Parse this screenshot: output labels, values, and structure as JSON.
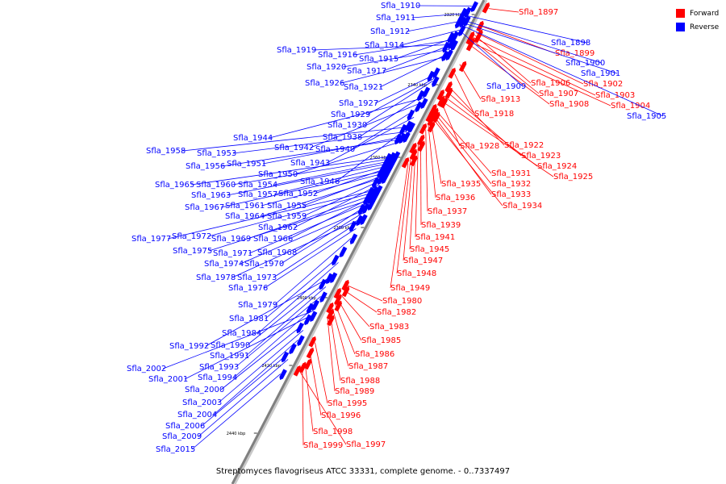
{
  "legend": {
    "forward": {
      "label": "Forward",
      "color": "#ff0000"
    },
    "reverse": {
      "label": "Reverse",
      "color": "#0000ff"
    }
  },
  "caption": "Streptomyces flavogriseus ATCC 33331, complete genome. - 0..7337497",
  "axis": {
    "unit": "kbp",
    "ticks": [
      "2320 kbp",
      "2340 kbp",
      "2360 kbp",
      "2380 kbp",
      "2400 kbp",
      "2420 kbp",
      "2440 kbp"
    ]
  },
  "colors": {
    "axis": "#808080",
    "forward": "#ff0000",
    "reverse": "#0000ff",
    "leader_forward": "#ff0000",
    "leader_reverse": "#0000ff"
  },
  "forward_genes": [
    {
      "label": "Sfla_1897",
      "a": 0.01
    },
    {
      "label": "Sfla_1899",
      "a": 0.045
    },
    {
      "label": "Sfla_1902",
      "a": 0.06
    },
    {
      "label": "Sfla_1903",
      "a": 0.07
    },
    {
      "label": "Sfla_1904",
      "a": 0.08
    },
    {
      "label": "Sfla_1906",
      "a": 0.065
    },
    {
      "label": "Sfla_1907",
      "a": 0.075
    },
    {
      "label": "Sfla_1908",
      "a": 0.085
    },
    {
      "label": "Sfla_1913",
      "a": 0.125
    },
    {
      "label": "Sfla_1918",
      "a": 0.145
    },
    {
      "label": "Sfla_1922",
      "a": 0.17
    },
    {
      "label": "Sfla_1923",
      "a": 0.18
    },
    {
      "label": "Sfla_1924",
      "a": 0.19
    },
    {
      "label": "Sfla_1925",
      "a": 0.2
    },
    {
      "label": "Sfla_1928",
      "a": 0.2
    },
    {
      "label": "Sfla_1931",
      "a": 0.22
    },
    {
      "label": "Sfla_1932",
      "a": 0.225
    },
    {
      "label": "Sfla_1933",
      "a": 0.23
    },
    {
      "label": "Sfla_1934",
      "a": 0.235
    },
    {
      "label": "Sfla_1935",
      "a": 0.24
    },
    {
      "label": "Sfla_1936",
      "a": 0.25
    },
    {
      "label": "Sfla_1937",
      "a": 0.26
    },
    {
      "label": "Sfla_1939",
      "a": 0.28
    },
    {
      "label": "Sfla_1941",
      "a": 0.29
    },
    {
      "label": "Sfla_1945",
      "a": 0.3
    },
    {
      "label": "Sfla_1947",
      "a": 0.31
    },
    {
      "label": "Sfla_1948",
      "a": 0.32
    },
    {
      "label": "Sfla_1949",
      "a": 0.33
    },
    {
      "label": "Sfla_1980",
      "a": 0.58
    },
    {
      "label": "Sfla_1982",
      "a": 0.59
    },
    {
      "label": "Sfla_1983",
      "a": 0.6
    },
    {
      "label": "Sfla_1985",
      "a": 0.61
    },
    {
      "label": "Sfla_1986",
      "a": 0.62
    },
    {
      "label": "Sfla_1987",
      "a": 0.63
    },
    {
      "label": "Sfla_1988",
      "a": 0.64
    },
    {
      "label": "Sfla_1989",
      "a": 0.65
    },
    {
      "label": "Sfla_1995",
      "a": 0.7
    },
    {
      "label": "Sfla_1996",
      "a": 0.72
    },
    {
      "label": "Sfla_1998",
      "a": 0.74
    },
    {
      "label": "Sfla_1997",
      "a": 0.76
    },
    {
      "label": "Sfla_1999",
      "a": 0.75
    }
  ],
  "reverse_genes": [
    {
      "label": "Sfla_1910",
      "a": 0.02
    },
    {
      "label": "Sfla_1911",
      "a": 0.035
    },
    {
      "label": "Sfla_1912",
      "a": 0.05
    },
    {
      "label": "Sfla_1914",
      "a": 0.07
    },
    {
      "label": "Sfla_1915",
      "a": 0.085
    },
    {
      "label": "Sfla_1916",
      "a": 0.09
    },
    {
      "label": "Sfla_1919",
      "a": 0.1
    },
    {
      "label": "Sfla_1917",
      "a": 0.1
    },
    {
      "label": "Sfla_1920",
      "a": 0.11
    },
    {
      "label": "Sfla_1921",
      "a": 0.12
    },
    {
      "label": "Sfla_1926",
      "a": 0.125
    },
    {
      "label": "Sfla_1898",
      "a": 0.04
    },
    {
      "label": "Sfla_1900",
      "a": 0.05
    },
    {
      "label": "Sfla_1901",
      "a": 0.055
    },
    {
      "label": "Sfla_1905",
      "a": 0.06
    },
    {
      "label": "Sfla_1909",
      "a": 0.07
    },
    {
      "label": "Sfla_1927",
      "a": 0.16
    },
    {
      "label": "Sfla_1929",
      "a": 0.17
    },
    {
      "label": "Sfla_1930",
      "a": 0.175
    },
    {
      "label": "Sfla_1938",
      "a": 0.2
    },
    {
      "label": "Sfla_1944",
      "a": 0.21
    },
    {
      "label": "Sfla_1942",
      "a": 0.22
    },
    {
      "label": "Sfla_1940",
      "a": 0.23
    },
    {
      "label": "Sfla_1943",
      "a": 0.25
    },
    {
      "label": "Sfla_1946",
      "a": 0.27
    },
    {
      "label": "Sfla_1958",
      "a": 0.27
    },
    {
      "label": "Sfla_1953",
      "a": 0.28
    },
    {
      "label": "Sfla_1951",
      "a": 0.29
    },
    {
      "label": "Sfla_1956",
      "a": 0.295
    },
    {
      "label": "Sfla_1950",
      "a": 0.3
    },
    {
      "label": "Sfla_1965",
      "a": 0.33
    },
    {
      "label": "Sfla_1960",
      "a": 0.335
    },
    {
      "label": "Sfla_1954",
      "a": 0.34
    },
    {
      "label": "Sfla_1963",
      "a": 0.345
    },
    {
      "label": "Sfla_1957",
      "a": 0.35
    },
    {
      "label": "Sfla_1952",
      "a": 0.355
    },
    {
      "label": "Sfla_1967",
      "a": 0.36
    },
    {
      "label": "Sfla_1961",
      "a": 0.365
    },
    {
      "label": "Sfla_1955",
      "a": 0.37
    },
    {
      "label": "Sfla_1964",
      "a": 0.375
    },
    {
      "label": "Sfla_1959",
      "a": 0.38
    },
    {
      "label": "Sfla_1962",
      "a": 0.39
    },
    {
      "label": "Sfla_1977",
      "a": 0.4
    },
    {
      "label": "Sfla_1972",
      "a": 0.405
    },
    {
      "label": "Sfla_1969",
      "a": 0.41
    },
    {
      "label": "Sfla_1966",
      "a": 0.415
    },
    {
      "label": "Sfla_1975",
      "a": 0.42
    },
    {
      "label": "Sfla_1971",
      "a": 0.425
    },
    {
      "label": "Sfla_1968",
      "a": 0.43
    },
    {
      "label": "Sfla_1974",
      "a": 0.44
    },
    {
      "label": "Sfla_1970",
      "a": 0.445
    },
    {
      "label": "Sfla_1978",
      "a": 0.46
    },
    {
      "label": "Sfla_1973",
      "a": 0.465
    },
    {
      "label": "Sfla_1976",
      "a": 0.48
    },
    {
      "label": "Sfla_1979",
      "a": 0.5
    },
    {
      "label": "Sfla_1981",
      "a": 0.53
    },
    {
      "label": "Sfla_1984",
      "a": 0.55
    },
    {
      "label": "Sfla_1992",
      "a": 0.58
    },
    {
      "label": "Sfla_1990",
      "a": 0.585
    },
    {
      "label": "Sfla_1991",
      "a": 0.6
    },
    {
      "label": "Sfla_1993",
      "a": 0.62
    },
    {
      "label": "Sfla_1994",
      "a": 0.64
    },
    {
      "label": "Sfla_2002",
      "a": 0.65
    },
    {
      "label": "Sfla_2001",
      "a": 0.66
    },
    {
      "label": "Sfla_2000",
      "a": 0.67
    },
    {
      "label": "Sfla_2003",
      "a": 0.69
    },
    {
      "label": "Sfla_2004",
      "a": 0.71
    },
    {
      "label": "Sfla_2006",
      "a": 0.73
    },
    {
      "label": "Sfla_2009",
      "a": 0.75
    },
    {
      "label": "Sfla_2015",
      "a": 0.78
    }
  ]
}
